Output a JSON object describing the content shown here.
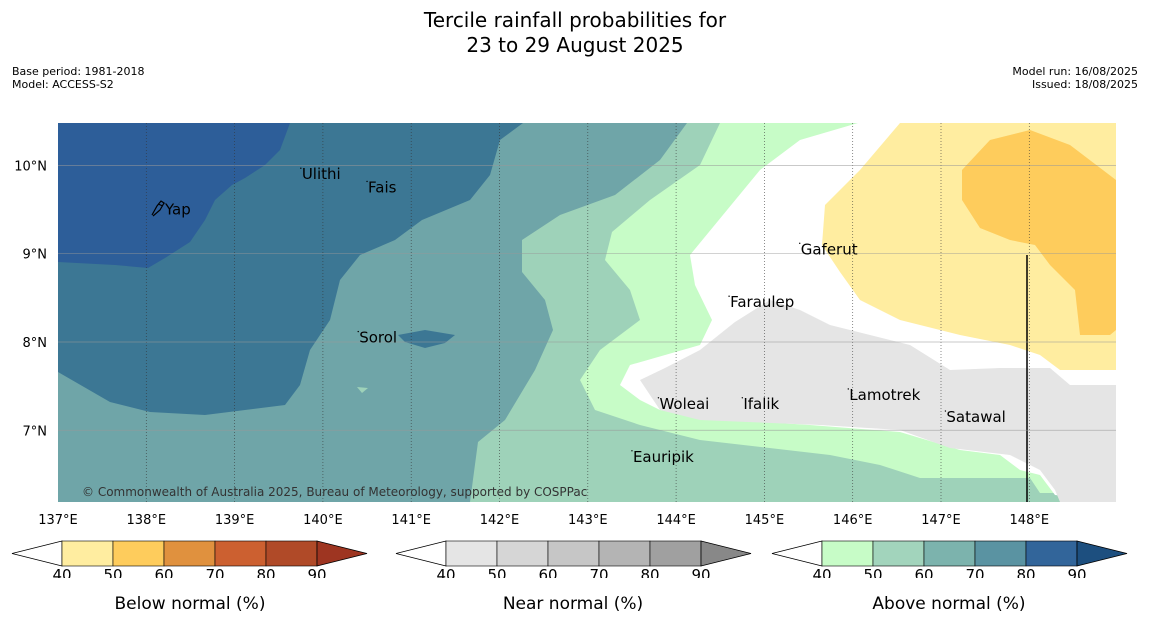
{
  "title_line1": "Tercile rainfall probabilities for",
  "title_line2": "23 to 29 August 2025",
  "left_meta": [
    "Base period: 1981-2018",
    "Model: ACCESS-S2"
  ],
  "right_meta": [
    "Model run: 16/08/2025",
    "Issued: 18/08/2025"
  ],
  "copyright": "© Commonwealth of Australia 2025, Bureau of Meteorology, supported by COSPPac",
  "chart_data": {
    "type": "heatmap",
    "title": "Tercile rainfall probabilities for 23 to 29 August 2025",
    "x_ticks": [
      "137°E",
      "138°E",
      "139°E",
      "140°E",
      "141°E",
      "142°E",
      "143°E",
      "144°E",
      "145°E",
      "146°E",
      "147°E",
      "148°E"
    ],
    "x_tick_values": [
      137,
      138,
      139,
      140,
      141,
      142,
      143,
      144,
      145,
      146,
      147,
      148
    ],
    "y_ticks": [
      "10°N",
      "9°N",
      "8°N",
      "7°N"
    ],
    "y_tick_values": [
      10,
      9,
      8,
      7
    ],
    "xlim": [
      137,
      149
    ],
    "ylim": [
      6.2,
      10.5
    ],
    "places": [
      {
        "name": "Yap",
        "lon": 138.2,
        "lat": 9.5
      },
      {
        "name": "Ulithi",
        "lon": 139.75,
        "lat": 9.9
      },
      {
        "name": "Fais",
        "lon": 140.5,
        "lat": 9.75
      },
      {
        "name": "Sorol",
        "lon": 140.4,
        "lat": 8.05
      },
      {
        "name": "Gaferut",
        "lon": 145.4,
        "lat": 9.05
      },
      {
        "name": "Faraulep",
        "lon": 144.6,
        "lat": 8.45
      },
      {
        "name": "Woleai",
        "lon": 143.8,
        "lat": 7.3
      },
      {
        "name": "Ifalik",
        "lon": 144.75,
        "lat": 7.3
      },
      {
        "name": "Lamotrek",
        "lon": 145.95,
        "lat": 7.4
      },
      {
        "name": "Satawal",
        "lon": 147.05,
        "lat": 7.15
      },
      {
        "name": "Eauripik",
        "lon": 143.5,
        "lat": 6.7
      }
    ],
    "colorbars": [
      {
        "label": "Below normal (%)",
        "ticks": [
          "40",
          "50",
          "60",
          "70",
          "80",
          "90"
        ],
        "colors": [
          "#ffffff",
          "#ffeda0",
          "#fecc5c",
          "#e0913e",
          "#cc6030",
          "#b04a28",
          "#9e3521"
        ]
      },
      {
        "label": "Near normal (%)",
        "ticks": [
          "40",
          "50",
          "60",
          "70",
          "80",
          "90"
        ],
        "colors": [
          "#ffffff",
          "#e5e5e5",
          "#d6d6d6",
          "#c6c6c6",
          "#b4b4b4",
          "#a0a0a0",
          "#888888"
        ]
      },
      {
        "label": "Above normal (%)",
        "ticks": [
          "40",
          "50",
          "60",
          "70",
          "80",
          "90"
        ],
        "colors": [
          "#ffffff",
          "#c7fcc7",
          "#a2d4bc",
          "#7cb3ad",
          "#5a93a2",
          "#32659a",
          "#1d4f7f"
        ]
      }
    ]
  }
}
